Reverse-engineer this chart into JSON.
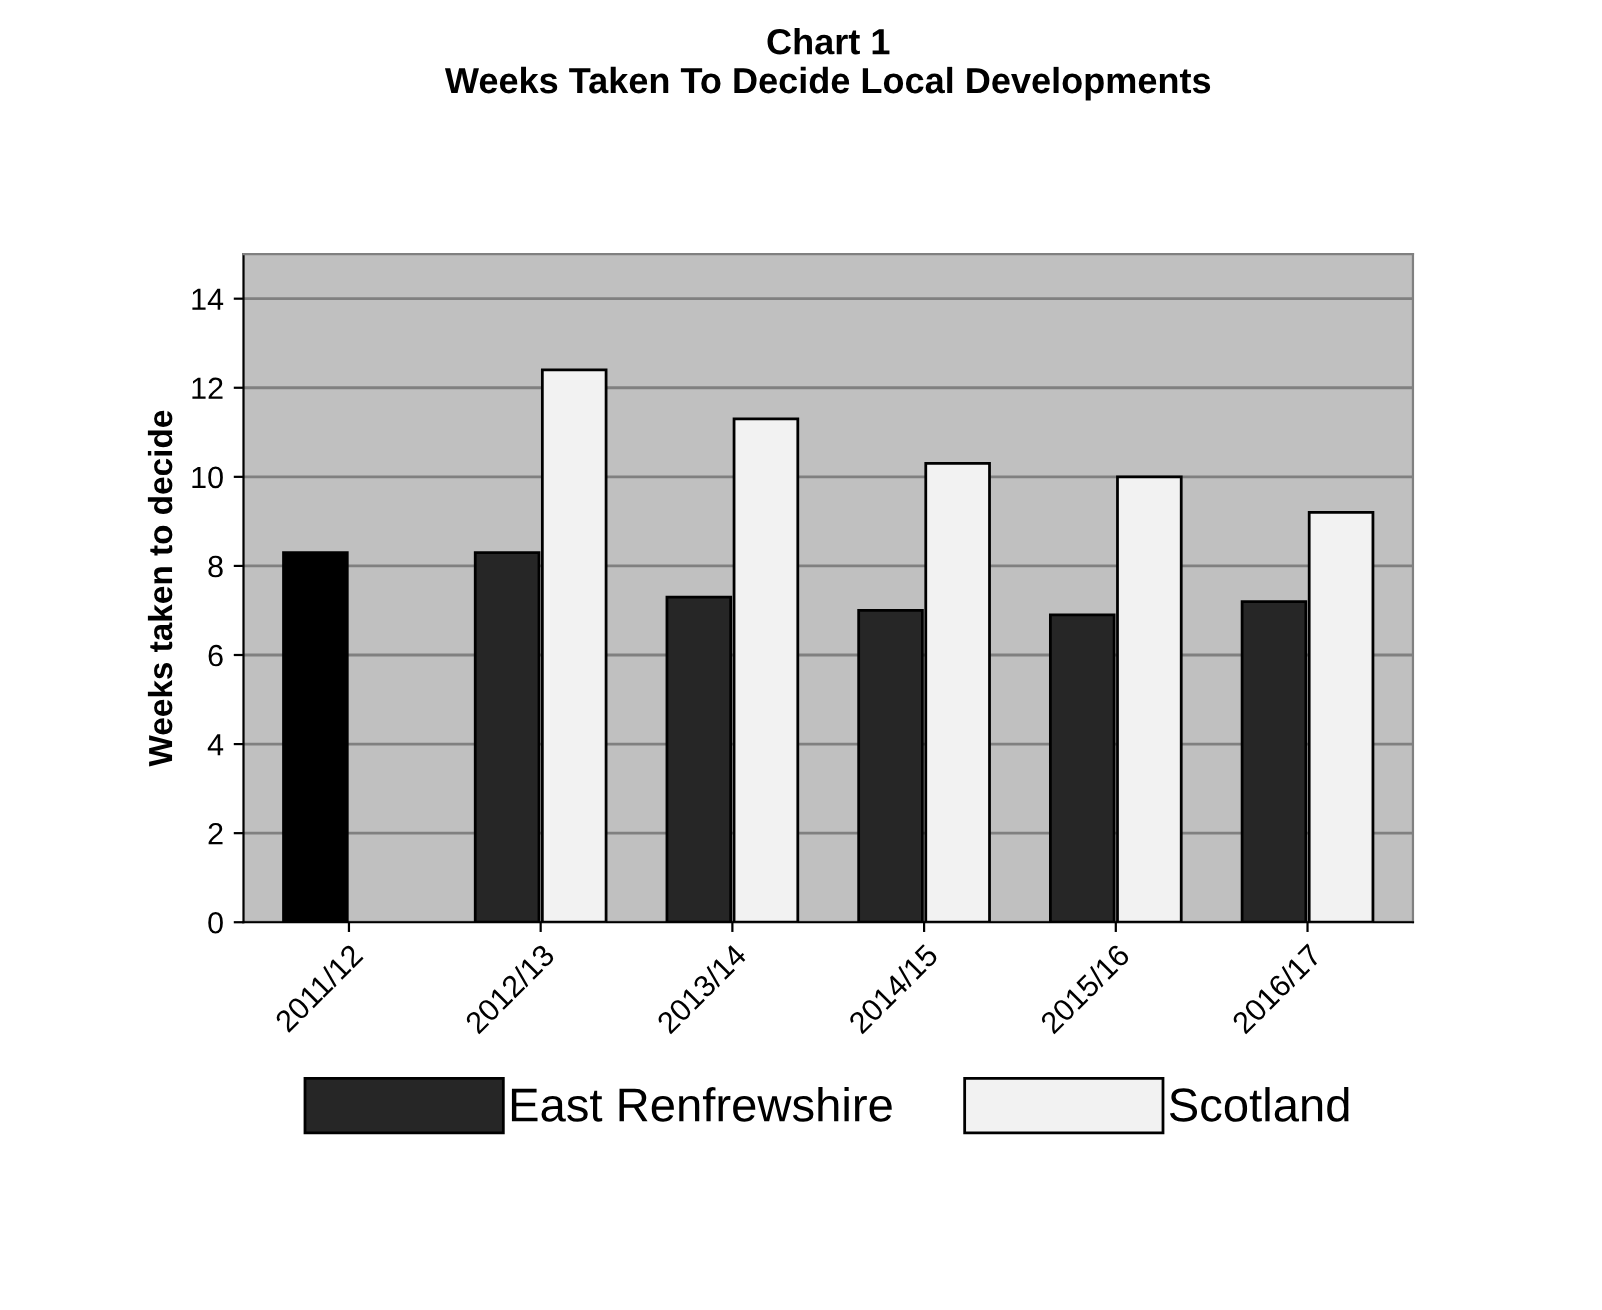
{
  "chart_data": {
    "type": "bar",
    "title": "Chart 1\nWeeks Taken To Decide Local Developments",
    "ylabel": "Weeks taken to decide",
    "categories": [
      "2011/12",
      "2012/13",
      "2013/14",
      "2014/15",
      "2015/16",
      "2016/17"
    ],
    "series": [
      {
        "name": "East Renfrewshire",
        "color": "#262626",
        "colors": [
          "#000000",
          "#262626",
          "#262626",
          "#262626",
          "#262626",
          "#262626"
        ],
        "values": [
          8.3,
          8.3,
          7.3,
          7.0,
          6.9,
          7.2
        ]
      },
      {
        "name": "Scotland",
        "color": "#f2f2f2",
        "values": [
          null,
          12.4,
          11.3,
          10.3,
          10.0,
          9.2
        ]
      }
    ],
    "ylim": [
      0,
      15
    ],
    "yticks": [
      0,
      2,
      4,
      6,
      8,
      10,
      12,
      14
    ],
    "grid": "y",
    "legend": "bottom"
  }
}
